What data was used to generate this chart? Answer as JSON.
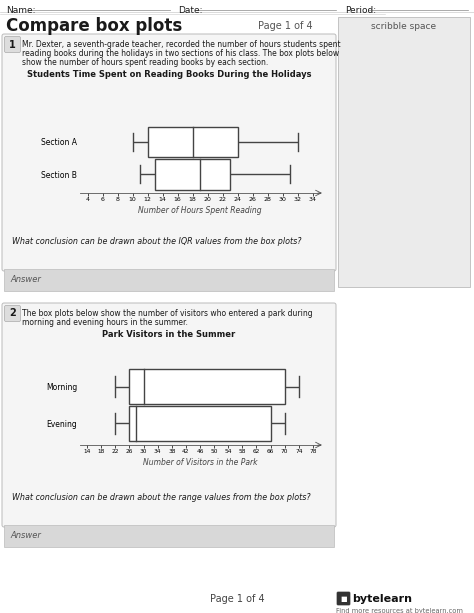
{
  "title": "Compare box plots",
  "page": "Page 1 of 4",
  "header_name": "Name:",
  "header_date": "Date:",
  "header_period": "Period:",
  "scribble_label": "scribble space",
  "footer_page": "Page 1 of 4",
  "footer_text": "Find more resources at bytelearn.com",
  "q1_number": "1",
  "q1_text1": "Mr. Dexter, a seventh-grade teacher, recorded the number of hours students spent",
  "q1_text2": "reading books during the holidays in two sections of his class. The box plots below",
  "q1_text3": "show the number of hours spent reading books by each section.",
  "q1_chart_title": "Students Time Spent on Reading Books During the Holidays",
  "q1_xlabel": "Number of Hours Spent Reading",
  "q1_section_a_label": "Section A",
  "q1_section_b_label": "Section B",
  "q1_xlim": [
    3,
    35
  ],
  "q1_xticks": [
    4,
    6,
    8,
    10,
    12,
    14,
    16,
    18,
    20,
    22,
    24,
    26,
    28,
    30,
    32,
    34
  ],
  "q1_section_a": {
    "min": 10,
    "q1": 12,
    "median": 18,
    "q3": 24,
    "max": 32
  },
  "q1_section_b": {
    "min": 11,
    "q1": 13,
    "median": 19,
    "q3": 23,
    "max": 31
  },
  "q1_question": "What conclusion can be drawn about the IQR values from the box plots?",
  "q1_answer_label": "Answer",
  "q2_number": "2",
  "q2_text1": "The box plots below show the number of visitors who entered a park during",
  "q2_text2": "morning and evening hours in the summer.",
  "q2_chart_title": "Park Visitors in the Summer",
  "q2_xlabel": "Number of Visitors in the Park",
  "q2_morning_label": "Morning",
  "q2_evening_label": "Evening",
  "q2_xlim": [
    12,
    80
  ],
  "q2_xticks": [
    14,
    18,
    22,
    26,
    30,
    34,
    38,
    42,
    46,
    50,
    54,
    58,
    62,
    66,
    70,
    74,
    78
  ],
  "q2_morning": {
    "min": 22,
    "q1": 26,
    "median": 30,
    "q3": 70,
    "max": 74
  },
  "q2_evening": {
    "min": 22,
    "q1": 26,
    "median": 28,
    "q3": 66,
    "max": 70
  },
  "q2_question": "What conclusion can be drawn about the range values from the box plots?",
  "q2_answer_label": "Answer",
  "bg_color": "#ffffff",
  "card_bg": "#f5f5f5",
  "answer_bg": "#d8d8d8",
  "scribble_bg": "#ebebeb",
  "border_color": "#bbbbbb",
  "text_color": "#1a1a1a",
  "box_edge_color": "#444444",
  "axis_color": "#555555"
}
